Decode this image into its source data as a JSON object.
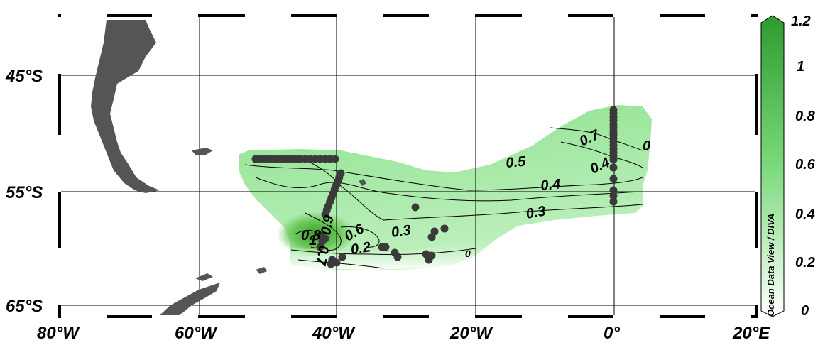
{
  "map": {
    "lat_labels": [
      {
        "id": "lat-45",
        "text": "45°S"
      },
      {
        "id": "lat-55",
        "text": "55°S"
      },
      {
        "id": "lat-65",
        "text": "65°S"
      }
    ],
    "lon_labels": [
      {
        "id": "lon-80w",
        "text": "80°W"
      },
      {
        "id": "lon-60w",
        "text": "60°W"
      },
      {
        "id": "lon-40w",
        "text": "40°W"
      },
      {
        "id": "lon-20w",
        "text": "20°W"
      },
      {
        "id": "lon-0",
        "text": "0°"
      },
      {
        "id": "lon-20e",
        "text": "20°E"
      }
    ],
    "contour_labels": [
      "0.7",
      "0",
      "0.5",
      "0.4",
      "0.4",
      "0.3",
      "0.8",
      "0.9",
      "1",
      "0.7",
      "0.6",
      "0.3",
      "0.2",
      "0"
    ],
    "land_color": "#555555",
    "field_color_low": "#e8fbe8",
    "field_color_high": "#2e9a2e",
    "station_color": "#3a3a3a"
  },
  "colorbar": {
    "title": "Ocean Data View / DIVA",
    "ticks": [
      "1.2",
      "1",
      "0.8",
      "0.6",
      "0.4",
      "0.2",
      "0"
    ],
    "color_top": "#2e9a2e",
    "color_bottom": "#ffffff"
  }
}
